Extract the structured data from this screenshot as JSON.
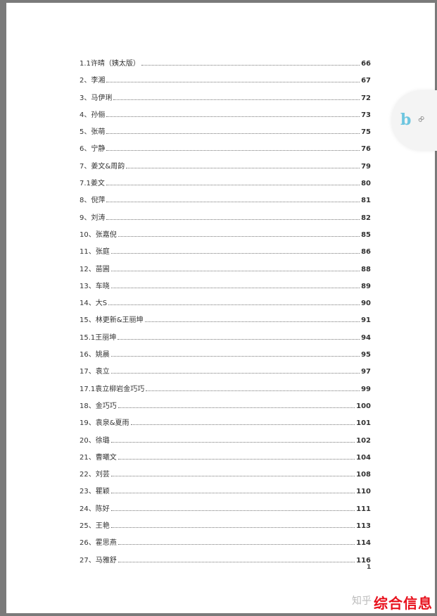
{
  "toc": [
    {
      "label": "1.1许晴（姨太版）",
      "page": "66"
    },
    {
      "label": "2、李湘",
      "page": "67"
    },
    {
      "label": "3、马伊琍",
      "page": "72"
    },
    {
      "label": "4、孙俪",
      "page": "73"
    },
    {
      "label": "5、张萌",
      "page": "75"
    },
    {
      "label": "6、宁静",
      "page": "76"
    },
    {
      "label": "7、姜文&周韵",
      "page": "79"
    },
    {
      "label": "7.1姜文",
      "page": "80"
    },
    {
      "label": "8、倪萍",
      "page": "81"
    },
    {
      "label": "9、刘涛",
      "page": "82"
    },
    {
      "label": "10、张嘉倪",
      "page": "85"
    },
    {
      "label": "11、张庭",
      "page": "86"
    },
    {
      "label": "12、苗圃",
      "page": "88"
    },
    {
      "label": "13、车晓",
      "page": "89"
    },
    {
      "label": "14、大S",
      "page": "90"
    },
    {
      "label": "15、林更新&王丽坤",
      "page": "91"
    },
    {
      "label": "15.1王丽坤",
      "page": "94"
    },
    {
      "label": "16、姚晨",
      "page": "95"
    },
    {
      "label": "17、袁立",
      "page": "97"
    },
    {
      "label": "17.1袁立柳岩金巧巧",
      "page": "99"
    },
    {
      "label": "18、金巧巧",
      "page": "100"
    },
    {
      "label": "19、袁泉&夏雨",
      "page": "101"
    },
    {
      "label": "20、徐璐",
      "page": "102"
    },
    {
      "label": "21、曹曦文",
      "page": "104"
    },
    {
      "label": "22、刘芸",
      "page": "108"
    },
    {
      "label": "23、瞿颖",
      "page": "110"
    },
    {
      "label": "24、陈好",
      "page": "111"
    },
    {
      "label": "25、王艳",
      "page": "113"
    },
    {
      "label": "26、霍思燕",
      "page": "114"
    },
    {
      "label": "27、马雅舒",
      "page": "116"
    }
  ],
  "page_number": "1",
  "widget": {
    "b_label": "b",
    "link_icon": "link-icon"
  },
  "watermark": {
    "site": "知乎",
    "brand": "综合信息"
  },
  "colors": {
    "brand_red": "#e8101c",
    "b_blue": "#6ec6e0"
  }
}
